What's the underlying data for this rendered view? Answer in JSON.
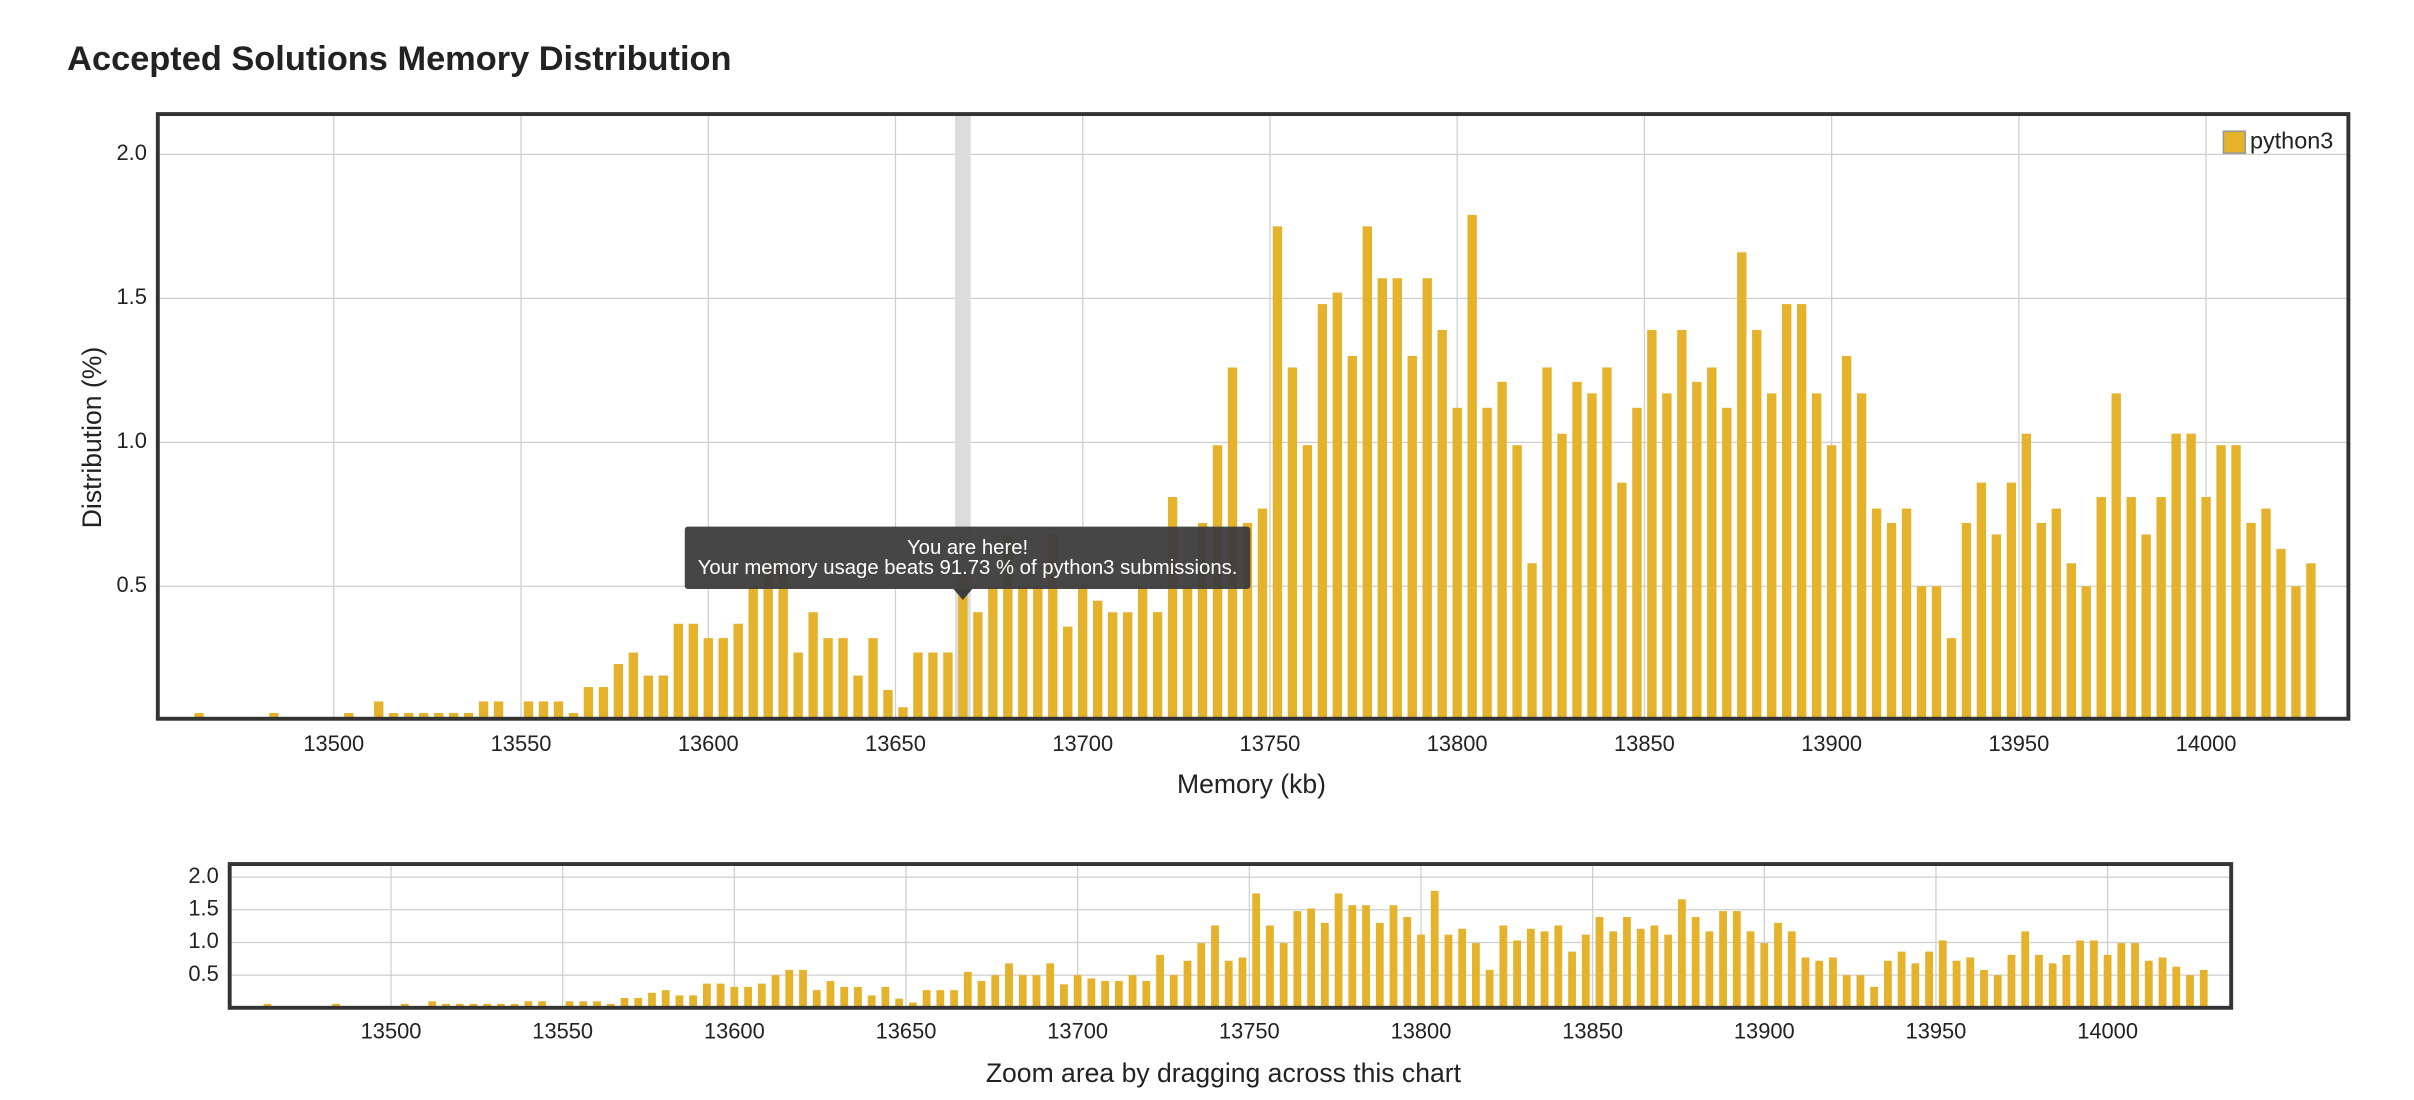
{
  "chart_data": {
    "type": "bar",
    "title": "Accepted Solutions Memory Distribution",
    "xlabel": "Memory (kb)",
    "ylabel": "Distribution (%)",
    "x": [
      13464,
      13484,
      13504,
      13512,
      13516,
      13520,
      13524,
      13528,
      13532,
      13536,
      13540,
      13544,
      13552,
      13556,
      13560,
      13564,
      13568,
      13572,
      13576,
      13580,
      13584,
      13588,
      13592,
      13596,
      13600,
      13604,
      13608,
      13612,
      13616,
      13620,
      13624,
      13628,
      13632,
      13636,
      13640,
      13644,
      13648,
      13652,
      13656,
      13660,
      13664,
      13668,
      13672,
      13676,
      13680,
      13684,
      13688,
      13692,
      13696,
      13700,
      13704,
      13708,
      13712,
      13716,
      13720,
      13724,
      13728,
      13732,
      13736,
      13740,
      13744,
      13748,
      13752,
      13756,
      13760,
      13764,
      13768,
      13772,
      13776,
      13780,
      13784,
      13788,
      13792,
      13796,
      13800,
      13804,
      13808,
      13812,
      13816,
      13820,
      13824,
      13828,
      13832,
      13836,
      13840,
      13844,
      13848,
      13852,
      13856,
      13860,
      13864,
      13868,
      13872,
      13876,
      13880,
      13884,
      13888,
      13892,
      13896,
      13900,
      13904,
      13908,
      13912,
      13916,
      13920,
      13924,
      13928,
      13932,
      13936,
      13940,
      13944,
      13948,
      13952,
      13956,
      13960,
      13964,
      13968,
      13972,
      13976,
      13980,
      13984,
      13988,
      13992,
      13996,
      14000,
      14004,
      14008,
      14012,
      14016,
      14020,
      14024,
      14028
    ],
    "series": [
      {
        "name": "python3",
        "color": "#e5b22b",
        "values": [
          0.06,
          0.06,
          0.06,
          0.1,
          0.06,
          0.06,
          0.06,
          0.06,
          0.06,
          0.06,
          0.1,
          0.1,
          0.1,
          0.1,
          0.1,
          0.06,
          0.15,
          0.15,
          0.23,
          0.27,
          0.19,
          0.19,
          0.37,
          0.37,
          0.32,
          0.32,
          0.37,
          0.5,
          0.58,
          0.58,
          0.27,
          0.41,
          0.32,
          0.32,
          0.19,
          0.32,
          0.14,
          0.08,
          0.27,
          0.27,
          0.27,
          0.55,
          0.41,
          0.5,
          0.68,
          0.5,
          0.5,
          0.68,
          0.36,
          0.5,
          0.45,
          0.41,
          0.41,
          0.5,
          0.41,
          0.81,
          0.5,
          0.72,
          0.99,
          1.26,
          0.72,
          0.77,
          1.75,
          1.26,
          0.99,
          1.48,
          1.52,
          1.3,
          1.75,
          1.57,
          1.57,
          1.3,
          1.57,
          1.39,
          1.12,
          1.79,
          1.12,
          1.21,
          0.99,
          0.58,
          1.26,
          1.03,
          1.21,
          1.17,
          1.26,
          0.86,
          1.12,
          1.39,
          1.17,
          1.39,
          1.21,
          1.26,
          1.12,
          1.66,
          1.39,
          1.17,
          1.48,
          1.48,
          1.17,
          0.99,
          1.3,
          1.17,
          0.77,
          0.72,
          0.77,
          0.5,
          0.5,
          0.32,
          0.72,
          0.86,
          0.68,
          0.86,
          1.03,
          0.72,
          0.77,
          0.58,
          0.5,
          0.81,
          1.17,
          0.81,
          0.68,
          0.81,
          1.03,
          1.03,
          0.81,
          0.99,
          0.99,
          0.72,
          0.77,
          0.63,
          0.5,
          0.58
        ]
      }
    ],
    "xlim": [
      13453,
      14038
    ],
    "ylim": [
      0.04,
      2.14
    ],
    "xticks": [
      13500,
      13550,
      13600,
      13650,
      13700,
      13750,
      13800,
      13850,
      13900,
      13950,
      14000
    ],
    "yticks": [
      0.5,
      {
        "value": 1,
        "label": "1.0"
      },
      1.5,
      {
        "value": 2,
        "label": "2.0"
      }
    ],
    "grid": true,
    "legend": "upper right",
    "annotation": {
      "x": 13668,
      "title": "You are here!",
      "text": "Your memory usage beats 91.73 % of python3 submissions."
    },
    "navigator": {
      "caption": "Zoom area by dragging across this chart",
      "xlim": [
        13453,
        14036
      ],
      "ylim": [
        0,
        2.2
      ],
      "xticks": [
        13500,
        13550,
        13600,
        13650,
        13700,
        13750,
        13800,
        13850,
        13900,
        13950,
        14000
      ],
      "yticks": [
        0.5,
        {
          "value": 1,
          "label": "1.0"
        },
        1.5,
        {
          "value": 2,
          "label": "2.0"
        }
      ]
    }
  }
}
